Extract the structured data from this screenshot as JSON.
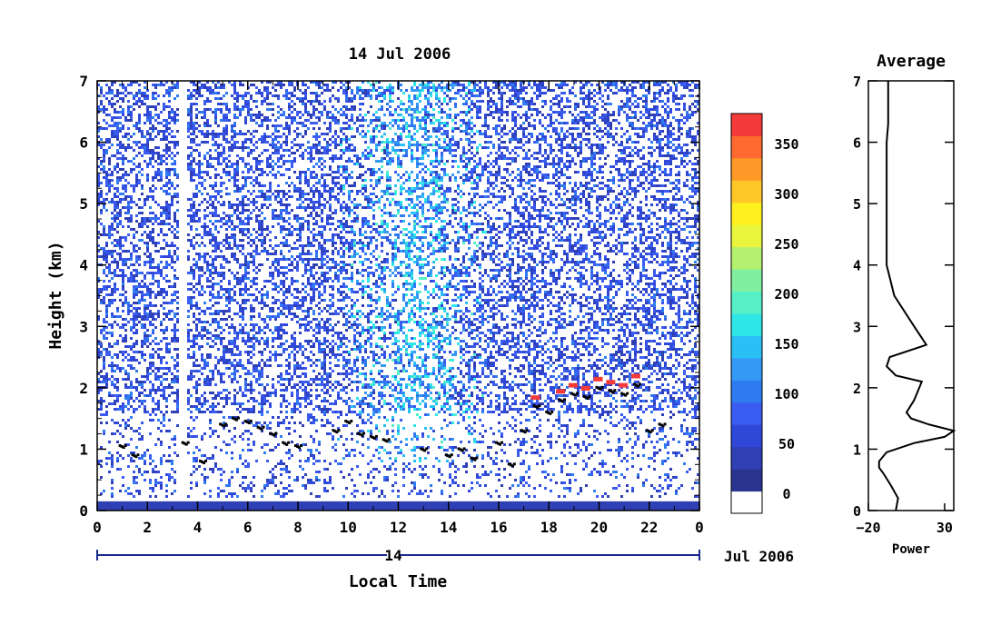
{
  "chart_data": [
    {
      "type": "heatmap",
      "title": "14 Jul 2006",
      "xlabel": "Local Time",
      "ylabel": "Height (km)",
      "xlim": [
        0,
        24
      ],
      "ylim": [
        0,
        7
      ],
      "x_ticks": [
        "0",
        "2",
        "4",
        "6",
        "8",
        "10",
        "12",
        "14",
        "16",
        "18",
        "20",
        "22",
        "0"
      ],
      "y_ticks": [
        "0",
        "1",
        "2",
        "3",
        "4",
        "5",
        "6",
        "7"
      ],
      "date_day": "14",
      "date_month": "Jul 2006",
      "colorbar": {
        "ticks": [
          "0",
          "50",
          "100",
          "150",
          "200",
          "250",
          "300",
          "350"
        ],
        "range": [
          -20,
          380
        ],
        "colors": [
          "#ffffff",
          "#2b3390",
          "#2f3fb4",
          "#3048d8",
          "#3a5cf0",
          "#2e7cf0",
          "#3399f5",
          "#2bc0f5",
          "#2fe6e6",
          "#55f0c8",
          "#80f0a0",
          "#b4f070",
          "#e8f53c",
          "#fff020",
          "#ffc828",
          "#ff9a28",
          "#ff6a30",
          "#f53a3a"
        ]
      },
      "backscatter_bands": [
        {
          "name": "surface layer",
          "x": [
            0,
            24
          ],
          "height": [
            0,
            0.15
          ],
          "value": 0
        },
        {
          "name": "noisy mid-day",
          "x": [
            9.5,
            15.5
          ],
          "height": [
            1,
            7
          ],
          "value": 140
        }
      ],
      "boundary_layer_height": {
        "x": [
          1,
          1.5,
          3.5,
          4.2,
          5,
          5.5,
          6,
          6.5,
          7,
          7.5,
          8,
          9.5,
          10,
          10.5,
          11,
          11.5,
          13,
          14,
          14.5,
          15,
          16,
          16.5,
          17,
          17.5,
          18,
          18.5,
          19,
          19.5,
          20,
          20.5,
          21,
          21.5,
          22,
          22.5
        ],
        "y": [
          1.05,
          0.9,
          1.1,
          0.8,
          1.4,
          1.5,
          1.45,
          1.35,
          1.25,
          1.1,
          1.05,
          1.3,
          1.45,
          1.25,
          1.2,
          1.15,
          1.0,
          0.9,
          1.0,
          0.85,
          1.1,
          0.75,
          1.3,
          1.7,
          1.6,
          1.8,
          1.9,
          1.85,
          2.0,
          1.95,
          1.9,
          2.05,
          1.3,
          1.4
        ]
      }
    },
    {
      "type": "line",
      "title": "Average",
      "xlabel": "Power",
      "ylabel": "",
      "xlim": [
        -20,
        36
      ],
      "ylim": [
        0,
        7
      ],
      "x_ticks": [
        "-20",
        "30"
      ],
      "y_ticks": [
        "0",
        "1",
        "2",
        "3",
        "4",
        "5",
        "6",
        "7"
      ],
      "x": [
        -2,
        -0.5,
        -5,
        -10,
        -13,
        -13,
        -8,
        10,
        30,
        36,
        20,
        8,
        5,
        10,
        15,
        -2,
        -8,
        -6,
        18,
        10,
        -3,
        -8,
        -8,
        -8,
        -8,
        -8,
        -7,
        -7,
        -7
      ],
      "y": [
        0,
        0.2,
        0.4,
        0.6,
        0.7,
        0.8,
        0.95,
        1.1,
        1.2,
        1.3,
        1.4,
        1.5,
        1.6,
        1.8,
        2.1,
        2.2,
        2.35,
        2.5,
        2.7,
        3.0,
        3.5,
        4.0,
        4.5,
        5.0,
        5.5,
        6.0,
        6.3,
        6.7,
        7.0
      ]
    }
  ]
}
